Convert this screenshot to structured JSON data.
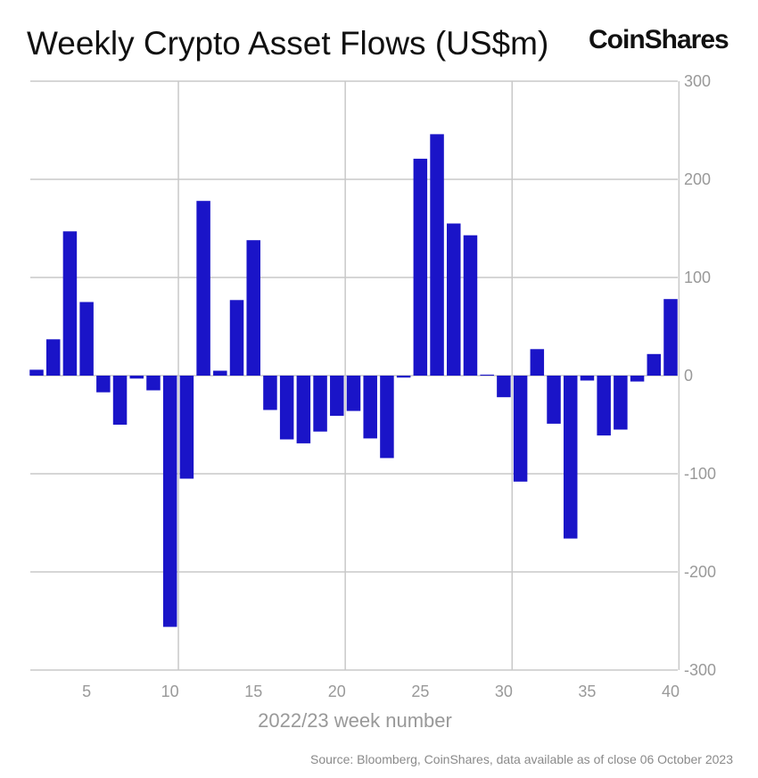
{
  "chart_data": {
    "type": "bar",
    "title": "Weekly Crypto Asset Flows (US$m)",
    "xlabel": "2022/23 week number",
    "ylabel": "",
    "ylim": [
      -300,
      300
    ],
    "yticks": [
      300,
      200,
      100,
      0,
      -100,
      -200,
      -300
    ],
    "xticks": [
      5,
      10,
      15,
      20,
      25,
      30,
      35,
      40
    ],
    "grid": true,
    "color": "#1a14c8",
    "categories": [
      2,
      3,
      4,
      5,
      6,
      7,
      8,
      9,
      10,
      11,
      12,
      13,
      14,
      15,
      16,
      17,
      18,
      19,
      20,
      21,
      22,
      23,
      24,
      25,
      26,
      27,
      28,
      29,
      30,
      31,
      32,
      33,
      34,
      35,
      36,
      37,
      38,
      39,
      40
    ],
    "values": [
      6,
      37,
      147,
      75,
      -17,
      -50,
      -3,
      -15,
      -256,
      -105,
      178,
      5,
      77,
      138,
      -35,
      -65,
      -69,
      -57,
      -41,
      -36,
      -64,
      -84,
      -2,
      221,
      246,
      155,
      143,
      1,
      -22,
      -108,
      27,
      -49,
      -166,
      -5,
      -61,
      -55,
      -6,
      22,
      78
    ]
  },
  "brand": "CoinShares",
  "source": "Source: Bloomberg, CoinShares, data available as of close 06 October 2023"
}
